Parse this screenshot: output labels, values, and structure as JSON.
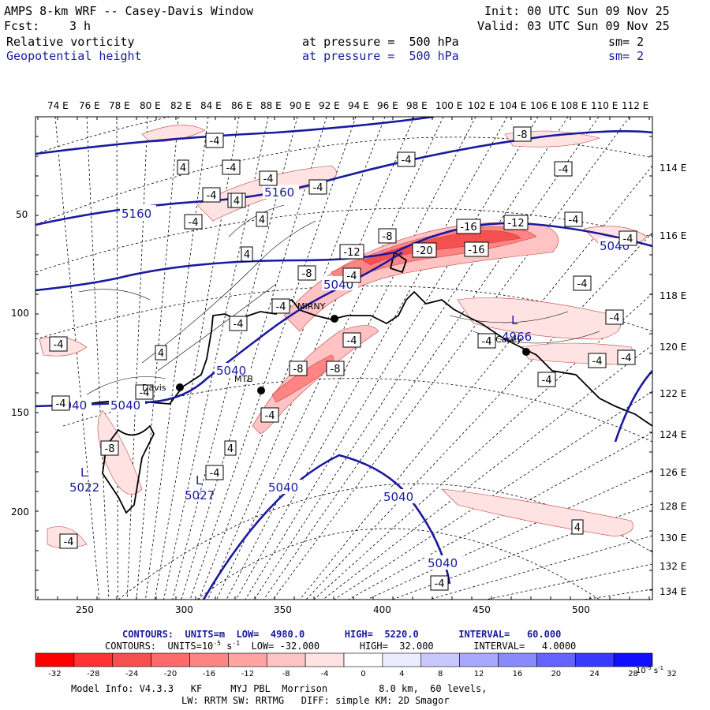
{
  "header": {
    "title": "AMPS 8-km WRF -- Casey-Davis Window",
    "init": "Init: 00 UTC Sun 09 Nov 25",
    "fcst_label": "Fcst:",
    "fcst_value": "3 h",
    "valid": "Valid: 03 UTC Sun 09 Nov 25",
    "field1": "Relative vorticity",
    "field1_pressure": "at pressure =  500 hPa",
    "field1_sm": "sm= 2",
    "field2": "Geopotential height",
    "field2_pressure": "at pressure =  500 hPa",
    "field2_sm": "sm= 2"
  },
  "map": {
    "top_lon_labels": [
      "74 E",
      "76 E",
      "78 E",
      "80 E",
      "82 E",
      "84 E",
      "86 E",
      "88 E",
      "90 E",
      "92 E",
      "94 E",
      "96 E",
      "98 E",
      "100 E",
      "102 E",
      "104 E",
      "106 E",
      "108 E",
      "110 E",
      "112 E"
    ],
    "right_lon_labels": [
      "114 E",
      "116 E",
      "118 E",
      "120 E",
      "122 E",
      "124 E",
      "126 E",
      "128 E",
      "130 E",
      "132 E",
      "134 E"
    ],
    "y_labels": [
      "50",
      "100",
      "150",
      "200"
    ],
    "x_labels": [
      "250",
      "300",
      "350",
      "400",
      "450",
      "500"
    ],
    "height_labels": [
      "5160",
      "5160",
      "5040",
      "5040",
      "5040",
      "5040",
      "5040",
      "5040",
      "5040",
      "5040",
      "4966",
      "5022",
      "5027"
    ],
    "low_labels": [
      "L",
      "L",
      "L"
    ],
    "vort_labels": [
      "-4",
      "4",
      "-4",
      "-8",
      "-4",
      "-4",
      "-4",
      "4",
      "-4",
      "-16",
      "-12",
      "-8",
      "-12",
      "-20",
      "-16",
      "-4",
      "-8",
      "-4",
      "4",
      "-4",
      "-8",
      "-4",
      "-4",
      "-4",
      "-4",
      "4",
      "-8",
      "-8",
      "-4",
      "-4",
      "-4",
      "-4",
      "-4",
      "-4",
      "-4",
      "-4",
      "4",
      "-4",
      "-8",
      "-4",
      "4",
      "-4",
      "-4",
      "-4",
      "4",
      "-4",
      "-4"
    ],
    "stations": [
      "Davis",
      "MTB",
      "MIRNY",
      "Casey"
    ]
  },
  "footer": {
    "contours1": "CONTOURS:  UNITS=m  LOW=  4980.0       HIGH=  5220.0       INTERVAL=   60.000",
    "contours2_prefix": "CONTOURS:  UNITS=10",
    "contours2_suffix": " s",
    "contours2_rest": "  LOW= -32.000       HIGH=  32.000       INTERVAL=   4.0000",
    "colorbar_labels": [
      "-32",
      "-28",
      "-24",
      "-20",
      "-16",
      "-12",
      "-8",
      "-4",
      "0",
      "4",
      "8",
      "12",
      "16",
      "20",
      "24",
      "28",
      "32"
    ],
    "colorbar_colors": [
      "#ff0000",
      "#ff3333",
      "#f5504f",
      "#ff6a6a",
      "#ff8585",
      "#ffa3a3",
      "#ffc3c3",
      "#ffe2e2",
      "#ffffff",
      "#ffffff",
      "#ececff",
      "#c8c8ff",
      "#a8a8ff",
      "#8a8aff",
      "#6363ff",
      "#3a3aff",
      "#1010ff"
    ],
    "colorbar_unit": "10",
    "model_info": "Model Info: V4.3.3   KF     MYJ PBL  Morrison         8.0 km,  60 levels,",
    "model_info2": "LW: RRTM SW: RRTMG   DIFF: simple KM: 2D Smagor"
  }
}
